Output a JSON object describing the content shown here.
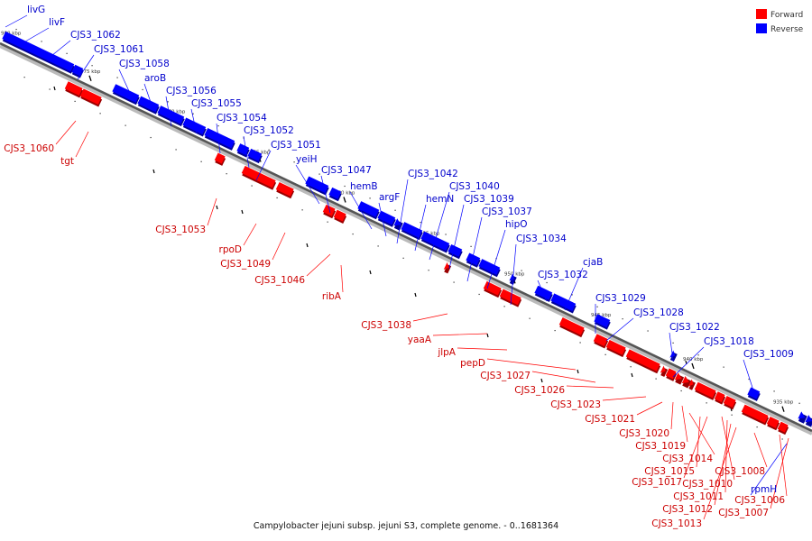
{
  "legend": [
    {
      "label": "Forward",
      "color": "#ff0000"
    },
    {
      "label": "Reverse",
      "color": "#0000ff"
    }
  ],
  "caption": "Campylobacter jejuni subsp. jejuni S3, complete genome. - 0..1681364",
  "colors": {
    "forward": "#ff0000",
    "reverse": "#0000ff",
    "label_forward": "#cc0000",
    "label_reverse": "#0000cc",
    "backbone": "#555555"
  },
  "kbp_ticks": [
    "980 kbp",
    "975 kbp",
    "970 kbp",
    "965 kbp",
    "960 kbp",
    "955 kbp",
    "950 kbp",
    "945 kbp",
    "940 kbp",
    "935 kbp"
  ],
  "reverse_labels": [
    "livG",
    "livF",
    "CJS3_1062",
    "CJS3_1061",
    "CJS3_1058",
    "aroB",
    "CJS3_1056",
    "CJS3_1055",
    "CJS3_1054",
    "CJS3_1052",
    "CJS3_1051",
    "yeiH",
    "CJS3_1047",
    "hemB",
    "argF",
    "CJS3_1042",
    "hemN",
    "CJS3_1040",
    "CJS3_1039",
    "CJS3_1037",
    "hipO",
    "CJS3_1034",
    "cjaB",
    "CJS3_1032",
    "CJS3_1029",
    "CJS3_1028",
    "CJS3_1022",
    "CJS3_1018",
    "CJS3_1009",
    "rpmH"
  ],
  "forward_labels": [
    "CJS3_1060",
    "tgt",
    "CJS3_1053",
    "rpoD",
    "CJS3_1049",
    "CJS3_1046",
    "ribA",
    "CJS3_1038",
    "yaaA",
    "jlpA",
    "pepD",
    "CJS3_1027",
    "CJS3_1026",
    "CJS3_1023",
    "CJS3_1021",
    "CJS3_1020",
    "CJS3_1019",
    "CJS3_1014",
    "CJS3_1015",
    "CJS3_1017",
    "CJS3_1010",
    "CJS3_1011",
    "CJS3_1012",
    "CJS3_1013",
    "CJS3_1008",
    "CJS3_1006",
    "CJS3_1007"
  ]
}
